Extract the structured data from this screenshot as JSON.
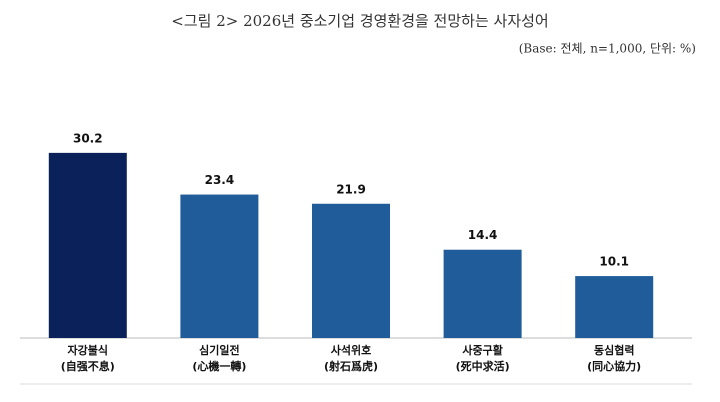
{
  "chart_data": {
    "type": "bar",
    "title": "<그림 2> 2026년 중소기업 경영환경을 전망하는 사자성어",
    "subtitle": "(Base: 전체, n=1,000, 단위: %)",
    "categories": [
      "자강불식",
      "심기일전",
      "사석위호",
      "사중구활",
      "동심협력"
    ],
    "category_hanja": [
      "(自强不息)",
      "(心機一轉)",
      "(射石爲虎)",
      "(死中求活)",
      "(同心協力)"
    ],
    "values": [
      30.2,
      23.4,
      21.9,
      14.4,
      10.1
    ],
    "colors": [
      "#0b2159",
      "#1f5c99",
      "#1f5c99",
      "#1f5c99",
      "#1f5c99"
    ],
    "ylim": [
      0,
      35
    ]
  }
}
